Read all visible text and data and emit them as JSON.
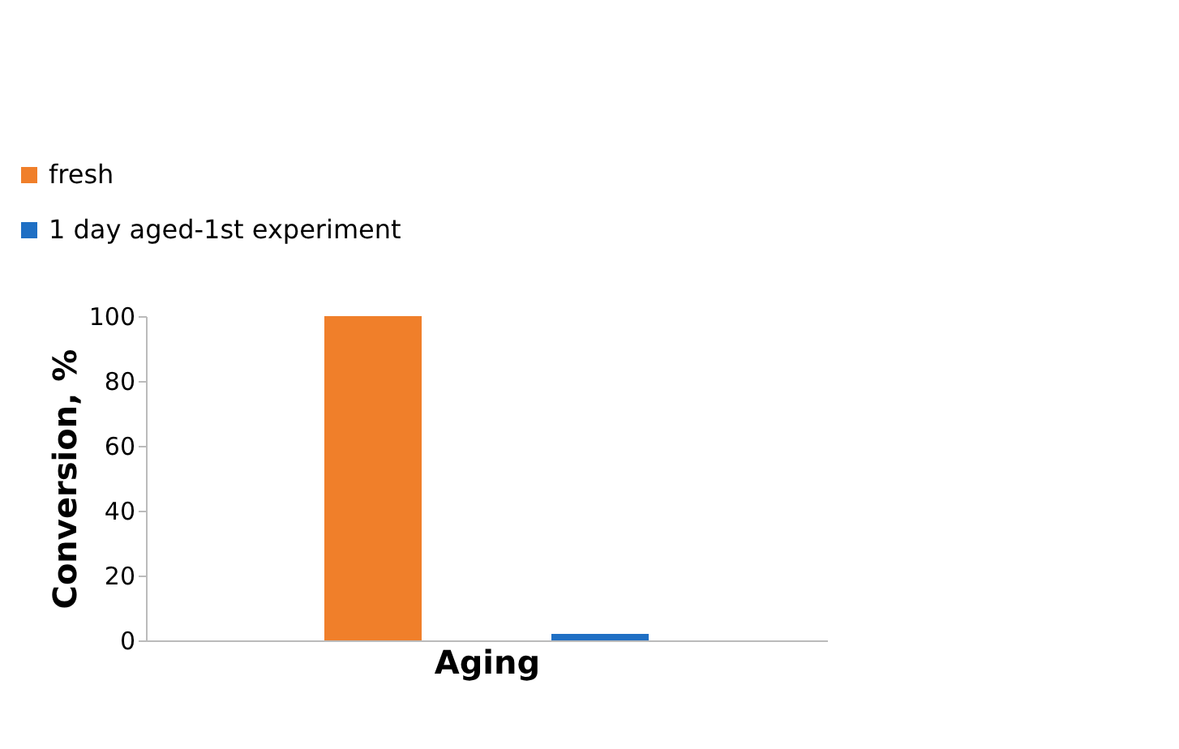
{
  "chart_data": {
    "type": "bar",
    "xlabel": "Aging",
    "ylabel": "Conversion, %",
    "categories": [
      null
    ],
    "series": [
      {
        "name": "fresh",
        "color": "#f07f2a",
        "values": [
          100
        ]
      },
      {
        "name": "1 day aged-1st experiment",
        "color": "#1f6fc4",
        "values": [
          2
        ]
      }
    ],
    "ylim": [
      0,
      100
    ],
    "yticks": [
      0,
      20,
      40,
      60,
      80,
      100
    ],
    "grid": false,
    "legend": "top left"
  }
}
